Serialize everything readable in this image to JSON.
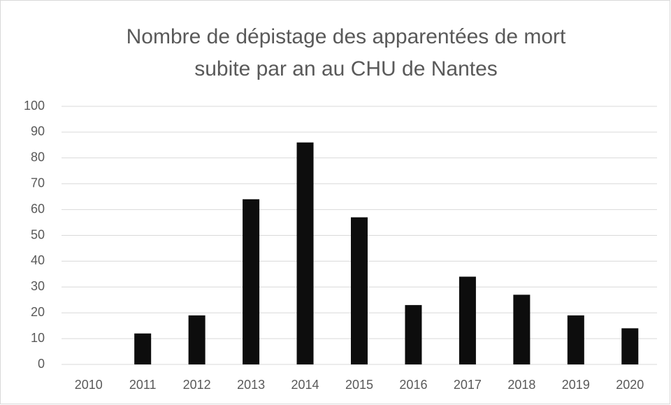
{
  "chart_data": {
    "type": "bar",
    "title": "Nombre de dépistage des apparentées de mort subite par an au CHU de Nantes",
    "categories": [
      "2010",
      "2011",
      "2012",
      "2013",
      "2014",
      "2015",
      "2016",
      "2017",
      "2018",
      "2019",
      "2020"
    ],
    "values": [
      0,
      12,
      19,
      64,
      86,
      57,
      23,
      34,
      27,
      19,
      14
    ],
    "color": "#0d0d0d",
    "ylim": [
      0,
      100
    ],
    "yticks": [
      0,
      10,
      20,
      30,
      40,
      50,
      60,
      70,
      80,
      90,
      100
    ],
    "grid": true
  }
}
